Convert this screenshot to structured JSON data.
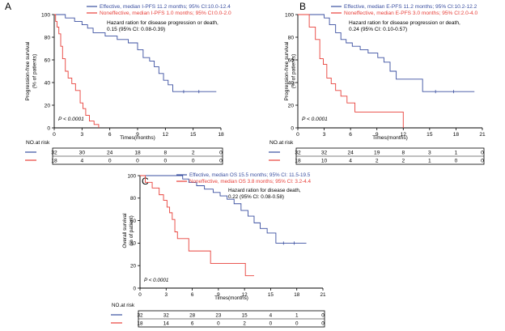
{
  "colors": {
    "effective": "#3a4fa0",
    "noneffective": "#e8403a",
    "axis": "#000000"
  },
  "chart_data": [
    {
      "panel_letter": "A",
      "type": "line",
      "ylabel": "Progression-free survival\n(% of patients)",
      "xlabel": "Times(months)",
      "xlim": [
        0,
        18
      ],
      "ylim": [
        0,
        100
      ],
      "xticks": [
        0,
        3,
        6,
        9,
        12,
        15,
        18
      ],
      "yticks": [
        0,
        20,
        40,
        60,
        80,
        100
      ],
      "legend_placement": "top-right",
      "series": [
        {
          "name": "Effective, median I-PFS 11.2 months; 95% CI:10.0-12.4",
          "color_key": "effective",
          "x": [
            0,
            1.2,
            2.2,
            3.0,
            3.6,
            4.2,
            5.5,
            6.8,
            8.0,
            9.0,
            9.6,
            10.3,
            10.8,
            11.3,
            11.8,
            12.3,
            12.8,
            17.5
          ],
          "y": [
            100,
            97,
            94,
            91,
            88,
            84,
            81,
            78,
            75,
            69,
            62,
            59,
            54,
            48,
            42,
            38,
            32,
            32
          ]
        },
        {
          "name": "Noneffective, median I-PFS 1.0 months; 95% CI:0.0-2.0",
          "color_key": "noneffective",
          "x": [
            0,
            0.15,
            0.3,
            0.5,
            0.7,
            0.9,
            1.2,
            1.5,
            1.9,
            2.3,
            2.8,
            3.1,
            3.4,
            3.8,
            4.3,
            4.8
          ],
          "y": [
            100,
            94,
            89,
            83,
            72,
            61,
            50,
            44,
            39,
            33,
            22,
            17,
            11,
            6,
            3,
            0
          ]
        }
      ],
      "annotations": [
        "Hazard ration for disease progression or death,",
        "0.15 (95% CI: 0.08-0.39)"
      ],
      "pvalue": "P < 0.0001",
      "risk_table": {
        "label": "NO.at risk",
        "rows": [
          {
            "color_key": "effective",
            "values": [
              "32",
              "30",
              "24",
              "18",
              "8",
              "2",
              "0"
            ]
          },
          {
            "color_key": "noneffective",
            "values": [
              "18",
              "4",
              "0",
              "0",
              "0",
              "0",
              "0"
            ]
          }
        ]
      }
    },
    {
      "panel_letter": "B",
      "type": "line",
      "ylabel": "Progression-free survival\n(% of patients)",
      "xlabel": "Times(months)",
      "xlim": [
        0,
        21
      ],
      "ylim": [
        0,
        100
      ],
      "xticks": [
        0,
        3,
        6,
        9,
        12,
        15,
        18,
        21
      ],
      "yticks": [
        0,
        20,
        40,
        60,
        80,
        100
      ],
      "legend_placement": "top-right",
      "series": [
        {
          "name": "Effective, median E-PFS 11.2 months; 95% CI:10.2-12.2",
          "color_key": "effective",
          "x": [
            0,
            3.0,
            3.6,
            4.3,
            4.9,
            5.5,
            6.2,
            7.1,
            8.0,
            9.1,
            9.8,
            10.5,
            11.2,
            12.3,
            14.2,
            20.1
          ],
          "y": [
            100,
            97,
            91,
            84,
            78,
            75,
            72,
            69,
            66,
            62,
            58,
            50,
            43,
            43,
            32,
            32
          ]
        },
        {
          "name": "Noneffective, median E-PFS 3.0 months; 95% CI:2.0-4.0",
          "color_key": "noneffective",
          "x": [
            0,
            1.3,
            2.0,
            2.5,
            2.9,
            3.3,
            3.8,
            4.3,
            4.9,
            5.6,
            6.5,
            10.7,
            12.0
          ],
          "y": [
            100,
            89,
            78,
            61,
            56,
            44,
            39,
            33,
            28,
            22,
            14,
            14,
            0
          ]
        }
      ],
      "annotations": [
        "Hazard ration for disease progression or death,",
        "0.24 (95% CI: 0.10-0.57)"
      ],
      "pvalue": "P < 0.0001",
      "risk_table": {
        "label": "NO.at risk",
        "rows": [
          {
            "color_key": "effective",
            "values": [
              "32",
              "32",
              "24",
              "19",
              "8",
              "3",
              "1",
              "0"
            ]
          },
          {
            "color_key": "noneffective",
            "values": [
              "18",
              "10",
              "4",
              "2",
              "2",
              "1",
              "0",
              "0"
            ]
          }
        ]
      }
    },
    {
      "panel_letter": "C",
      "type": "line",
      "ylabel": "Overall survival\n(% of patient)",
      "xlabel": "Times(months)",
      "xlim": [
        0,
        21
      ],
      "ylim": [
        0,
        100
      ],
      "xticks": [
        0,
        3,
        6,
        9,
        12,
        15,
        18,
        21
      ],
      "yticks": [
        0,
        20,
        40,
        60,
        80,
        100
      ],
      "legend_placement": "top-right",
      "series": [
        {
          "name": "Effective, median OS 15.5 months; 95% CI: 11.5-19.5",
          "color_key": "effective",
          "x": [
            0,
            4.9,
            5.6,
            6.5,
            7.4,
            8.4,
            9.2,
            10.0,
            10.8,
            11.6,
            12.4,
            13.1,
            13.8,
            14.6,
            15.6,
            19.1
          ],
          "y": [
            100,
            97,
            94,
            91,
            88,
            85,
            82,
            79,
            75,
            69,
            64,
            58,
            53,
            49,
            40,
            40
          ]
        },
        {
          "name": "Noneffective, median OS 3.8 months; 95% CI: 3.2-4.4",
          "color_key": "noneffective",
          "x": [
            0,
            0.6,
            1.4,
            2.2,
            2.7,
            3.1,
            3.4,
            3.7,
            4.0,
            4.3,
            5.6,
            8.1,
            12.1,
            13.1
          ],
          "y": [
            100,
            94,
            89,
            83,
            78,
            72,
            67,
            61,
            50,
            44,
            33,
            22,
            11,
            11
          ]
        }
      ],
      "annotations": [
        "Hazard ration for disease death,",
        "0.22 (95% CI: 0.08-0.58)"
      ],
      "pvalue": "P < 0.0001",
      "risk_table": {
        "label": "NO.at risk",
        "rows": [
          {
            "color_key": "effective",
            "values": [
              "32",
              "32",
              "28",
              "23",
              "15",
              "4",
              "1",
              "0"
            ]
          },
          {
            "color_key": "noneffective",
            "values": [
              "18",
              "14",
              "6",
              "0",
              "2",
              "0",
              "0",
              "0"
            ]
          }
        ]
      }
    }
  ]
}
